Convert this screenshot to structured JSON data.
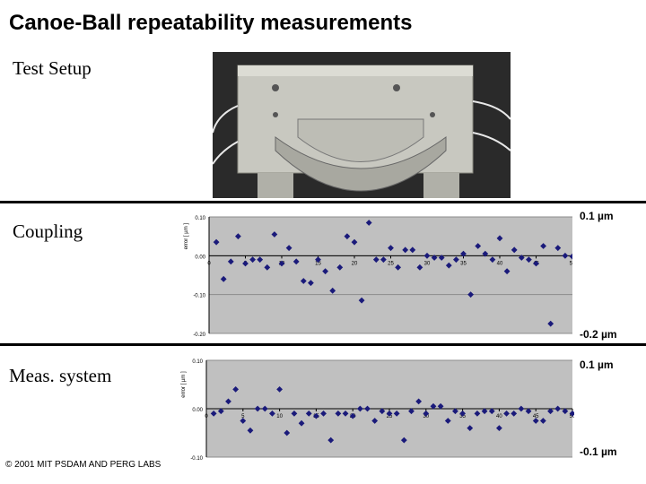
{
  "title": "Canoe-Ball repeatability measurements",
  "sections": {
    "test_setup": "Test Setup",
    "coupling": "Coupling",
    "meas_system": "Meas. system"
  },
  "coupling_scale": {
    "top": "0.1 µm",
    "bottom": "-0.2 µm"
  },
  "meas_scale": {
    "top": "0.1 µm",
    "bottom": "-0.1 µm"
  },
  "copyright": "© 2001 MIT PSDAM AND PERG LABS",
  "colors": {
    "plot_bg": "#c0c0c0",
    "marker": "#1a1a7a",
    "photo_bg": "#2a2a2a",
    "metal": "#c8c8c0"
  },
  "chart_data": [
    {
      "type": "scatter",
      "ylabel": "error [ µm ]",
      "xlim": [
        0,
        50
      ],
      "ylim": [
        -0.2,
        0.1
      ],
      "xticks": [
        0,
        5,
        10,
        15,
        20,
        25,
        30,
        35,
        40,
        45,
        50
      ],
      "xtick_labels": [
        "0",
        "5",
        "10",
        "15",
        "20",
        "25",
        "30",
        "35",
        "40",
        "45",
        "50"
      ],
      "yticks": [
        0.1,
        0.0,
        -0.1,
        -0.2
      ],
      "ytick_labels": [
        "0.10",
        "0.00",
        "-0.10",
        "-0.20"
      ],
      "grid": true,
      "x": [
        1,
        2,
        3,
        4,
        5,
        6,
        7,
        8,
        9,
        10,
        11,
        12,
        13,
        14,
        15,
        16,
        17,
        18,
        19,
        20,
        21,
        22,
        23,
        24,
        25,
        26,
        27,
        28,
        29,
        30,
        31,
        32,
        33,
        34,
        35,
        36,
        37,
        38,
        39,
        40,
        41,
        42,
        43,
        44,
        45,
        46,
        47,
        48,
        49,
        50
      ],
      "y": [
        0.035,
        -0.06,
        -0.015,
        0.05,
        -0.02,
        -0.01,
        -0.01,
        -0.03,
        0.055,
        -0.02,
        0.02,
        -0.015,
        -0.065,
        -0.07,
        -0.01,
        -0.04,
        -0.09,
        -0.03,
        0.05,
        0.035,
        -0.115,
        0.085,
        -0.01,
        -0.01,
        0.02,
        -0.03,
        0.015,
        0.015,
        -0.03,
        0.0,
        -0.005,
        -0.005,
        -0.025,
        -0.01,
        0.005,
        -0.1,
        0.025,
        0.005,
        -0.01,
        0.045,
        -0.04,
        0.015,
        -0.005,
        -0.01,
        -0.02,
        0.025,
        -0.175,
        0.02,
        0.0,
        -0.002
      ]
    },
    {
      "type": "scatter",
      "ylabel": "error [ µm ]",
      "xlim": [
        0,
        50
      ],
      "ylim": [
        -0.1,
        0.1
      ],
      "xticks": [
        0,
        5,
        10,
        15,
        20,
        25,
        30,
        35,
        40,
        45,
        50
      ],
      "xtick_labels": [
        "0",
        "5",
        "10",
        "15",
        "20",
        "25",
        "30",
        "35",
        "40",
        "45",
        "50"
      ],
      "yticks": [
        0.1,
        0.0,
        -0.1
      ],
      "ytick_labels": [
        "0.10",
        "0.00",
        "-0.10"
      ],
      "grid": true,
      "x": [
        1,
        2,
        3,
        4,
        5,
        6,
        7,
        8,
        9,
        10,
        11,
        12,
        13,
        14,
        15,
        16,
        17,
        18,
        19,
        20,
        21,
        22,
        23,
        24,
        25,
        26,
        27,
        28,
        29,
        30,
        31,
        32,
        33,
        34,
        35,
        36,
        37,
        38,
        39,
        40,
        41,
        42,
        43,
        44,
        45,
        46,
        47,
        48,
        49,
        50
      ],
      "y": [
        -0.01,
        -0.005,
        0.015,
        0.04,
        -0.025,
        -0.045,
        0.0,
        0.0,
        -0.01,
        0.04,
        -0.05,
        -0.01,
        -0.03,
        -0.01,
        -0.015,
        -0.01,
        -0.065,
        -0.01,
        -0.01,
        -0.015,
        0.0,
        0.0,
        -0.025,
        -0.005,
        -0.01,
        -0.01,
        -0.065,
        -0.005,
        0.015,
        -0.01,
        0.005,
        0.005,
        -0.025,
        -0.005,
        -0.01,
        -0.04,
        -0.01,
        -0.005,
        -0.005,
        -0.04,
        -0.01,
        -0.01,
        0.0,
        -0.005,
        -0.025,
        -0.025,
        -0.005,
        0.0,
        -0.005,
        -0.01
      ]
    }
  ]
}
